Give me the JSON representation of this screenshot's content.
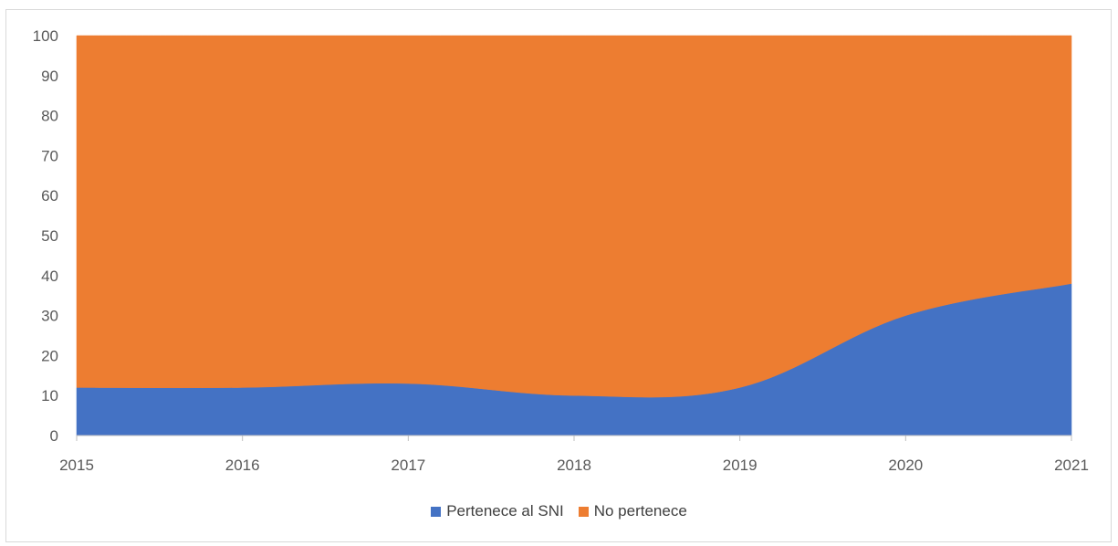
{
  "chart_data": {
    "type": "area",
    "stacked": true,
    "x": [
      2015,
      2016,
      2017,
      2018,
      2019,
      2020,
      2021
    ],
    "series": [
      {
        "name": "Pertenece al SNI",
        "color": "#4472c4",
        "values": [
          12,
          12,
          13,
          10,
          12,
          30,
          38
        ]
      },
      {
        "name": "No pertenece",
        "color": "#ed7d31",
        "values": [
          88,
          88,
          87,
          90,
          88,
          70,
          62
        ]
      }
    ],
    "ylim": [
      0,
      100
    ],
    "yticks": [
      0,
      10,
      20,
      30,
      40,
      50,
      60,
      70,
      80,
      90,
      100
    ],
    "grid": false,
    "legend": "bottom",
    "title": "",
    "xlabel": "",
    "ylabel": ""
  }
}
